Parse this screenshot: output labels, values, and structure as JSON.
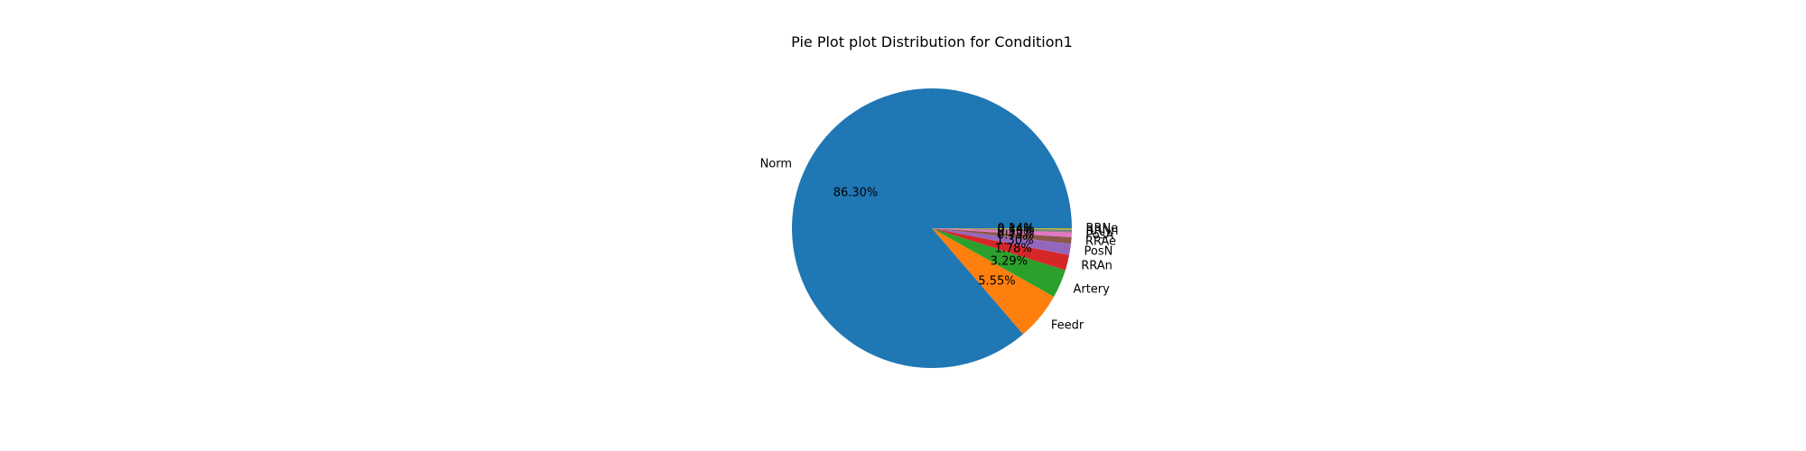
{
  "chart_data": {
    "type": "pie",
    "title": "Pie Plot plot Distribution for Condition1",
    "start_angle_deg": 0,
    "direction": "counterclockwise",
    "slices": [
      {
        "label": "Norm",
        "value": 86.3,
        "pct_label": "86.30%",
        "color": "#1f77b4"
      },
      {
        "label": "Feedr",
        "value": 5.55,
        "pct_label": "5.55%",
        "color": "#ff7f0e"
      },
      {
        "label": "Artery",
        "value": 3.29,
        "pct_label": "3.29%",
        "color": "#2ca02c"
      },
      {
        "label": "RRAn",
        "value": 1.78,
        "pct_label": "1.78%",
        "color": "#d62728"
      },
      {
        "label": "PosN",
        "value": 1.3,
        "pct_label": "1.30%",
        "color": "#9467bd"
      },
      {
        "label": "RRAe",
        "value": 0.75,
        "pct_label": "0.75%",
        "color": "#8c564b"
      },
      {
        "label": "PosA",
        "value": 0.55,
        "pct_label": "0.55%",
        "color": "#e377c2"
      },
      {
        "label": "RRNn",
        "value": 0.34,
        "pct_label": "0.34%",
        "color": "#7f7f7f"
      },
      {
        "label": "RRNe",
        "value": 0.14,
        "pct_label": "0.14%",
        "color": "#bcbd22"
      }
    ]
  }
}
